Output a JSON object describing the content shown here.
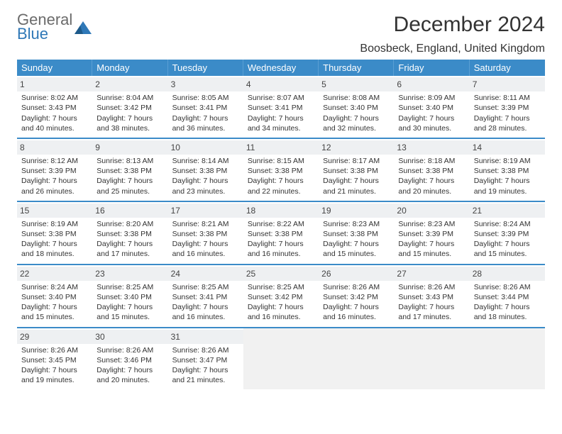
{
  "logo": {
    "top": "General",
    "bottom": "Blue",
    "mark_color": "#2f78b7"
  },
  "title": "December 2024",
  "location": "Boosbeck, England, United Kingdom",
  "header_bg": "#3b8bc8",
  "divider_color": "#3b8bc8",
  "weekdays": [
    "Sunday",
    "Monday",
    "Tuesday",
    "Wednesday",
    "Thursday",
    "Friday",
    "Saturday"
  ],
  "weeks": [
    [
      {
        "n": "1",
        "sr": "8:02 AM",
        "ss": "3:43 PM",
        "dl": "7 hours and 40 minutes."
      },
      {
        "n": "2",
        "sr": "8:04 AM",
        "ss": "3:42 PM",
        "dl": "7 hours and 38 minutes."
      },
      {
        "n": "3",
        "sr": "8:05 AM",
        "ss": "3:41 PM",
        "dl": "7 hours and 36 minutes."
      },
      {
        "n": "4",
        "sr": "8:07 AM",
        "ss": "3:41 PM",
        "dl": "7 hours and 34 minutes."
      },
      {
        "n": "5",
        "sr": "8:08 AM",
        "ss": "3:40 PM",
        "dl": "7 hours and 32 minutes."
      },
      {
        "n": "6",
        "sr": "8:09 AM",
        "ss": "3:40 PM",
        "dl": "7 hours and 30 minutes."
      },
      {
        "n": "7",
        "sr": "8:11 AM",
        "ss": "3:39 PM",
        "dl": "7 hours and 28 minutes."
      }
    ],
    [
      {
        "n": "8",
        "sr": "8:12 AM",
        "ss": "3:39 PM",
        "dl": "7 hours and 26 minutes."
      },
      {
        "n": "9",
        "sr": "8:13 AM",
        "ss": "3:38 PM",
        "dl": "7 hours and 25 minutes."
      },
      {
        "n": "10",
        "sr": "8:14 AM",
        "ss": "3:38 PM",
        "dl": "7 hours and 23 minutes."
      },
      {
        "n": "11",
        "sr": "8:15 AM",
        "ss": "3:38 PM",
        "dl": "7 hours and 22 minutes."
      },
      {
        "n": "12",
        "sr": "8:17 AM",
        "ss": "3:38 PM",
        "dl": "7 hours and 21 minutes."
      },
      {
        "n": "13",
        "sr": "8:18 AM",
        "ss": "3:38 PM",
        "dl": "7 hours and 20 minutes."
      },
      {
        "n": "14",
        "sr": "8:19 AM",
        "ss": "3:38 PM",
        "dl": "7 hours and 19 minutes."
      }
    ],
    [
      {
        "n": "15",
        "sr": "8:19 AM",
        "ss": "3:38 PM",
        "dl": "7 hours and 18 minutes."
      },
      {
        "n": "16",
        "sr": "8:20 AM",
        "ss": "3:38 PM",
        "dl": "7 hours and 17 minutes."
      },
      {
        "n": "17",
        "sr": "8:21 AM",
        "ss": "3:38 PM",
        "dl": "7 hours and 16 minutes."
      },
      {
        "n": "18",
        "sr": "8:22 AM",
        "ss": "3:38 PM",
        "dl": "7 hours and 16 minutes."
      },
      {
        "n": "19",
        "sr": "8:23 AM",
        "ss": "3:38 PM",
        "dl": "7 hours and 15 minutes."
      },
      {
        "n": "20",
        "sr": "8:23 AM",
        "ss": "3:39 PM",
        "dl": "7 hours and 15 minutes."
      },
      {
        "n": "21",
        "sr": "8:24 AM",
        "ss": "3:39 PM",
        "dl": "7 hours and 15 minutes."
      }
    ],
    [
      {
        "n": "22",
        "sr": "8:24 AM",
        "ss": "3:40 PM",
        "dl": "7 hours and 15 minutes."
      },
      {
        "n": "23",
        "sr": "8:25 AM",
        "ss": "3:40 PM",
        "dl": "7 hours and 15 minutes."
      },
      {
        "n": "24",
        "sr": "8:25 AM",
        "ss": "3:41 PM",
        "dl": "7 hours and 16 minutes."
      },
      {
        "n": "25",
        "sr": "8:25 AM",
        "ss": "3:42 PM",
        "dl": "7 hours and 16 minutes."
      },
      {
        "n": "26",
        "sr": "8:26 AM",
        "ss": "3:42 PM",
        "dl": "7 hours and 16 minutes."
      },
      {
        "n": "27",
        "sr": "8:26 AM",
        "ss": "3:43 PM",
        "dl": "7 hours and 17 minutes."
      },
      {
        "n": "28",
        "sr": "8:26 AM",
        "ss": "3:44 PM",
        "dl": "7 hours and 18 minutes."
      }
    ],
    [
      {
        "n": "29",
        "sr": "8:26 AM",
        "ss": "3:45 PM",
        "dl": "7 hours and 19 minutes."
      },
      {
        "n": "30",
        "sr": "8:26 AM",
        "ss": "3:46 PM",
        "dl": "7 hours and 20 minutes."
      },
      {
        "n": "31",
        "sr": "8:26 AM",
        "ss": "3:47 PM",
        "dl": "7 hours and 21 minutes."
      },
      {
        "empty": true
      },
      {
        "empty": true
      },
      {
        "empty": true
      },
      {
        "empty": true
      }
    ]
  ],
  "labels": {
    "sunrise": "Sunrise:",
    "sunset": "Sunset:",
    "daylight": "Daylight:"
  }
}
